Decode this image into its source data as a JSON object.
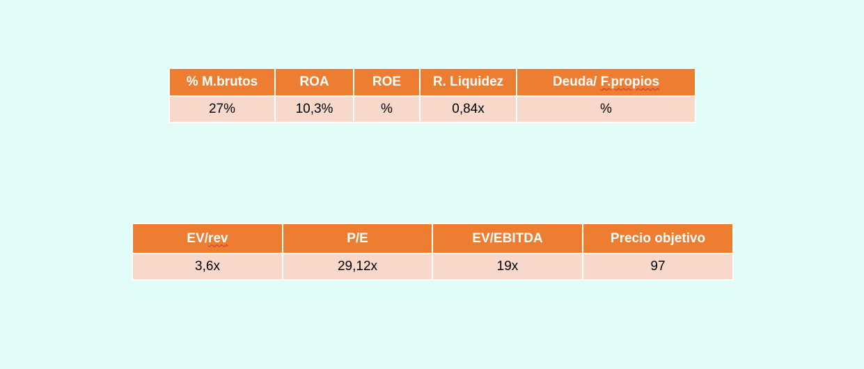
{
  "ratios_table": {
    "headers": [
      "% M.brutos",
      "ROA",
      "ROE",
      "R. Liquidez",
      "Deuda/ F.propios"
    ],
    "values": [
      "27%",
      "10,3%",
      "%",
      "0,84x",
      "%"
    ],
    "colors": {
      "header_bg": "#ed7d31",
      "cell_bg": "#f9d8cc"
    }
  },
  "valuation_table": {
    "headers": [
      "EV/rev",
      "P/E",
      "EV/EBITDA",
      "Precio objetivo"
    ],
    "values": [
      "3,6x",
      "29,12x",
      "19x",
      "97"
    ],
    "colors": {
      "header_bg": "#ed7d31",
      "cell_bg": "#f9d8cc"
    }
  },
  "page": {
    "background": "#e2fdf8"
  }
}
